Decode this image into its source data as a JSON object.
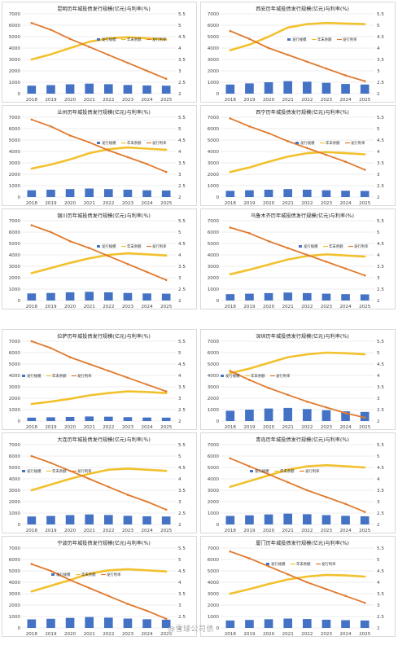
{
  "colors": {
    "bar": "#4472C4",
    "balance": "#F2C12E",
    "rate": "#E07A2E",
    "grid": "#d9d9d9"
  },
  "legend_labels": [
    "发行规模",
    "年末余额",
    "发行利率"
  ],
  "watermark": "@雪球公司债",
  "chart_data": [
    {
      "type": "bar",
      "title": "昆明历年城投债发行规模(亿元)与利率(%)",
      "categories": [
        "2018",
        "2019",
        "2020",
        "2021",
        "2022",
        "2023",
        "2024",
        "2025"
      ],
      "ylim": [
        0,
        7000
      ],
      "y2lim": [
        2,
        5.5
      ],
      "series": [
        {
          "name": "发行规模",
          "type": "bar",
          "axis": "left",
          "values": [
            700,
            750,
            820,
            880,
            830,
            760,
            720,
            700
          ]
        },
        {
          "name": "年末余额",
          "type": "line",
          "axis": "left",
          "values": [
            3000,
            3450,
            4000,
            4550,
            4850,
            4950,
            4850,
            4750
          ]
        },
        {
          "name": "发行利率",
          "type": "line",
          "axis": "right",
          "values": [
            5.1,
            4.8,
            4.4,
            4.05,
            3.7,
            3.35,
            3.0,
            2.65
          ]
        }
      ]
    },
    {
      "type": "bar",
      "title": "西安历年城投债发行规模(亿元)与利率(%)",
      "categories": [
        "2018",
        "2019",
        "2020",
        "2021",
        "2022",
        "2023",
        "2024",
        "2025"
      ],
      "ylim": [
        0,
        7000
      ],
      "y2lim": [
        2,
        5.5
      ],
      "series": [
        {
          "name": "发行规模",
          "type": "bar",
          "axis": "left",
          "values": [
            800,
            900,
            1000,
            1100,
            1050,
            950,
            850,
            800
          ]
        },
        {
          "name": "年末余额",
          "type": "line",
          "axis": "left",
          "values": [
            3800,
            4300,
            5000,
            5800,
            6100,
            6200,
            6150,
            6100
          ]
        },
        {
          "name": "发行利率",
          "type": "line",
          "axis": "right",
          "values": [
            4.75,
            4.4,
            4.0,
            3.7,
            3.4,
            3.1,
            2.8,
            2.55
          ]
        }
      ]
    },
    {
      "type": "bar",
      "title": "兰州历年城投债发行规模(亿元)与利率(%)",
      "categories": [
        "2018",
        "2019",
        "2020",
        "2021",
        "2022",
        "2023",
        "2024",
        "2025"
      ],
      "ylim": [
        0,
        7000
      ],
      "y2lim": [
        2,
        5.5
      ],
      "series": [
        {
          "name": "发行规模",
          "type": "bar",
          "axis": "left",
          "values": [
            600,
            650,
            700,
            750,
            700,
            650,
            600,
            580
          ]
        },
        {
          "name": "年末余额",
          "type": "line",
          "axis": "left",
          "values": [
            2500,
            2850,
            3300,
            3850,
            4200,
            4350,
            4250,
            4150
          ]
        },
        {
          "name": "发行利率",
          "type": "line",
          "axis": "right",
          "values": [
            5.4,
            5.1,
            4.7,
            4.4,
            4.05,
            3.75,
            3.45,
            3.1
          ]
        }
      ]
    },
    {
      "type": "bar",
      "title": "西宁历年城投债发行规模(亿元)与利率(%)",
      "categories": [
        "2018",
        "2019",
        "2020",
        "2021",
        "2022",
        "2023",
        "2024",
        "2025"
      ],
      "ylim": [
        0,
        7000
      ],
      "y2lim": [
        2,
        5.5
      ],
      "series": [
        {
          "name": "发行规模",
          "type": "bar",
          "axis": "left",
          "values": [
            550,
            600,
            650,
            700,
            650,
            600,
            560,
            540
          ]
        },
        {
          "name": "年末余额",
          "type": "line",
          "axis": "left",
          "values": [
            2200,
            2600,
            3100,
            3550,
            3850,
            3950,
            3850,
            3750
          ]
        },
        {
          "name": "发行利率",
          "type": "line",
          "axis": "right",
          "values": [
            5.45,
            5.1,
            4.8,
            4.45,
            4.15,
            3.85,
            3.55,
            3.2
          ]
        }
      ]
    },
    {
      "type": "bar",
      "title": "银川历年城投债发行规模(亿元)与利率(%)",
      "categories": [
        "2018",
        "2019",
        "2020",
        "2021",
        "2022",
        "2023",
        "2024",
        "2025"
      ],
      "ylim": [
        0,
        7000
      ],
      "y2lim": [
        2,
        5.5
      ],
      "series": [
        {
          "name": "发行规模",
          "type": "bar",
          "axis": "left",
          "values": [
            620,
            660,
            720,
            760,
            720,
            660,
            620,
            600
          ]
        },
        {
          "name": "年末余额",
          "type": "line",
          "axis": "left",
          "values": [
            2400,
            2850,
            3300,
            3700,
            4000,
            4150,
            4050,
            3950
          ]
        },
        {
          "name": "发行利率",
          "type": "line",
          "axis": "right",
          "values": [
            5.3,
            5.0,
            4.6,
            4.3,
            3.95,
            3.6,
            3.25,
            2.9
          ]
        }
      ]
    },
    {
      "type": "bar",
      "title": "乌鲁木齐历年城投债发行规模(亿元)与利率(%)",
      "categories": [
        "2018",
        "2019",
        "2020",
        "2021",
        "2022",
        "2023",
        "2024",
        "2025"
      ],
      "ylim": [
        0,
        7000
      ],
      "y2lim": [
        2,
        5.5
      ],
      "series": [
        {
          "name": "发行规模",
          "type": "bar",
          "axis": "left",
          "values": [
            560,
            600,
            650,
            700,
            650,
            600,
            560,
            540
          ]
        },
        {
          "name": "年末余额",
          "type": "line",
          "axis": "left",
          "values": [
            2300,
            2700,
            3150,
            3600,
            3900,
            4050,
            3950,
            3850
          ]
        },
        {
          "name": "发行利率",
          "type": "line",
          "axis": "right",
          "values": [
            5.2,
            4.95,
            4.6,
            4.3,
            4.0,
            3.7,
            3.4,
            3.1
          ]
        }
      ]
    },
    {
      "type": "bar",
      "title": "拉萨历年城投债发行规模(亿元)与利率(%)",
      "categories": [
        "2018",
        "2019",
        "2020",
        "2021",
        "2022",
        "2023",
        "2024",
        "2025"
      ],
      "ylim": [
        0,
        7000
      ],
      "y2lim": [
        2,
        5.5
      ],
      "series": [
        {
          "name": "发行规模",
          "type": "bar",
          "axis": "left",
          "values": [
            300,
            330,
            360,
            400,
            380,
            340,
            310,
            300
          ]
        },
        {
          "name": "年末余额",
          "type": "line",
          "axis": "left",
          "values": [
            1500,
            1700,
            1950,
            2250,
            2450,
            2600,
            2550,
            2450
          ]
        },
        {
          "name": "发行利率",
          "type": "line",
          "axis": "right",
          "values": [
            5.5,
            5.2,
            4.8,
            4.5,
            4.2,
            3.9,
            3.6,
            3.3
          ]
        }
      ]
    },
    {
      "type": "bar",
      "title": "深圳历年城投债发行规模(亿元)与利率(%)",
      "categories": [
        "2018",
        "2019",
        "2020",
        "2021",
        "2022",
        "2023",
        "2024",
        "2025"
      ],
      "ylim": [
        0,
        7000
      ],
      "y2lim": [
        2,
        5.5
      ],
      "series": [
        {
          "name": "发行规模",
          "type": "bar",
          "axis": "left",
          "values": [
            900,
            1000,
            1100,
            1150,
            1050,
            950,
            850,
            800
          ]
        },
        {
          "name": "年末余额",
          "type": "line",
          "axis": "left",
          "values": [
            4200,
            4600,
            5100,
            5600,
            5850,
            6000,
            5950,
            5850
          ]
        },
        {
          "name": "发行利率",
          "type": "line",
          "axis": "right",
          "values": [
            4.2,
            3.8,
            3.45,
            3.15,
            2.85,
            2.6,
            2.35,
            2.15
          ]
        }
      ]
    },
    {
      "type": "bar",
      "title": "大连历年城投债发行规模(亿元)与利率(%)",
      "categories": [
        "2018",
        "2019",
        "2020",
        "2021",
        "2022",
        "2023",
        "2024",
        "2025"
      ],
      "ylim": [
        0,
        7000
      ],
      "y2lim": [
        2,
        5.5
      ],
      "series": [
        {
          "name": "发行规模",
          "type": "bar",
          "axis": "left",
          "values": [
            700,
            750,
            820,
            880,
            830,
            760,
            720,
            700
          ]
        },
        {
          "name": "年末余额",
          "type": "line",
          "axis": "left",
          "values": [
            3000,
            3500,
            4000,
            4450,
            4800,
            4900,
            4800,
            4700
          ]
        },
        {
          "name": "发行利率",
          "type": "line",
          "axis": "right",
          "values": [
            5.0,
            4.7,
            4.35,
            4.0,
            3.65,
            3.3,
            3.0,
            2.65
          ]
        }
      ]
    },
    {
      "type": "bar",
      "title": "青岛历年城投债发行规模(亿元)与利率(%)",
      "categories": [
        "2018",
        "2019",
        "2020",
        "2021",
        "2022",
        "2023",
        "2024",
        "2025"
      ],
      "ylim": [
        0,
        7000
      ],
      "y2lim": [
        2,
        5.5
      ],
      "series": [
        {
          "name": "发行规模",
          "type": "bar",
          "axis": "left",
          "values": [
            750,
            800,
            880,
            950,
            900,
            820,
            760,
            720
          ]
        },
        {
          "name": "年末余额",
          "type": "line",
          "axis": "left",
          "values": [
            3300,
            3800,
            4300,
            4800,
            5100,
            5200,
            5100,
            5000
          ]
        },
        {
          "name": "发行利率",
          "type": "line",
          "axis": "right",
          "values": [
            4.9,
            4.55,
            4.2,
            3.85,
            3.5,
            3.2,
            2.9,
            2.55
          ]
        }
      ]
    },
    {
      "type": "bar",
      "title": "宁波历年城投债发行规模(亿元)与利率(%)",
      "categories": [
        "2018",
        "2019",
        "2020",
        "2021",
        "2022",
        "2023",
        "2024",
        "2025"
      ],
      "ylim": [
        0,
        7000
      ],
      "y2lim": [
        2,
        5.5
      ],
      "series": [
        {
          "name": "发行规模",
          "type": "bar",
          "axis": "left",
          "values": [
            750,
            800,
            880,
            950,
            900,
            820,
            760,
            720
          ]
        },
        {
          "name": "年末余额",
          "type": "line",
          "axis": "left",
          "values": [
            3200,
            3700,
            4200,
            4750,
            5050,
            5150,
            5050,
            4950
          ]
        },
        {
          "name": "发行利率",
          "type": "line",
          "axis": "right",
          "values": [
            4.8,
            4.5,
            4.1,
            3.75,
            3.4,
            3.05,
            2.75,
            2.4
          ]
        }
      ]
    },
    {
      "type": "bar",
      "title": "厦门历年城投债发行规模(亿元)与利率(%)",
      "categories": [
        "2018",
        "2019",
        "2020",
        "2021",
        "2022",
        "2023",
        "2024",
        "2025"
      ],
      "ylim": [
        0,
        7000
      ],
      "y2lim": [
        2,
        5.5
      ],
      "series": [
        {
          "name": "发行规模",
          "type": "bar",
          "axis": "left",
          "values": [
            650,
            700,
            760,
            820,
            780,
            720,
            680,
            650
          ]
        },
        {
          "name": "年末余额",
          "type": "line",
          "axis": "left",
          "values": [
            3000,
            3400,
            3850,
            4250,
            4500,
            4650,
            4600,
            4500
          ]
        },
        {
          "name": "发行利率",
          "type": "line",
          "axis": "right",
          "values": [
            5.35,
            5.05,
            4.7,
            4.35,
            4.0,
            3.7,
            3.4,
            3.1
          ]
        }
      ]
    }
  ]
}
